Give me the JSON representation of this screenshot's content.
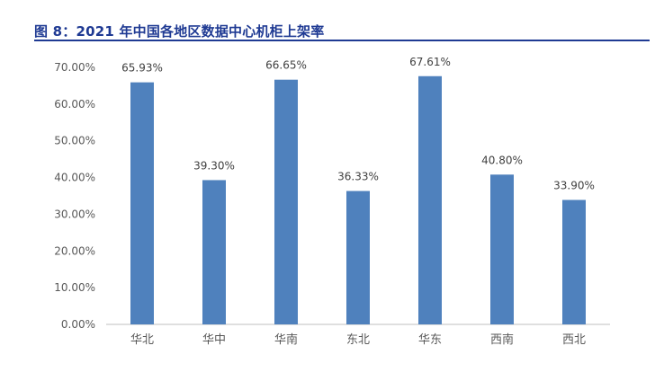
{
  "figure_title": "图 8：2021 年中国各地区数据中心机柜上架率",
  "colors": {
    "title": "#1f3a93",
    "bar": "#4f81bd",
    "axis": "#bfbfbf",
    "text": "#595959"
  },
  "chart_data": {
    "type": "bar",
    "categories": [
      "华北",
      "华中",
      "华南",
      "东北",
      "华东",
      "西南",
      "西北"
    ],
    "values": [
      65.93,
      39.3,
      66.65,
      36.33,
      67.61,
      40.8,
      33.9
    ],
    "data_labels": [
      "65.93%",
      "39.30%",
      "66.65%",
      "36.33%",
      "67.61%",
      "40.80%",
      "33.90%"
    ],
    "yticks": [
      "0.00%",
      "10.00%",
      "20.00%",
      "30.00%",
      "40.00%",
      "50.00%",
      "60.00%",
      "70.00%"
    ],
    "ylim": [
      0,
      70
    ],
    "grid": false,
    "legend": "none"
  }
}
